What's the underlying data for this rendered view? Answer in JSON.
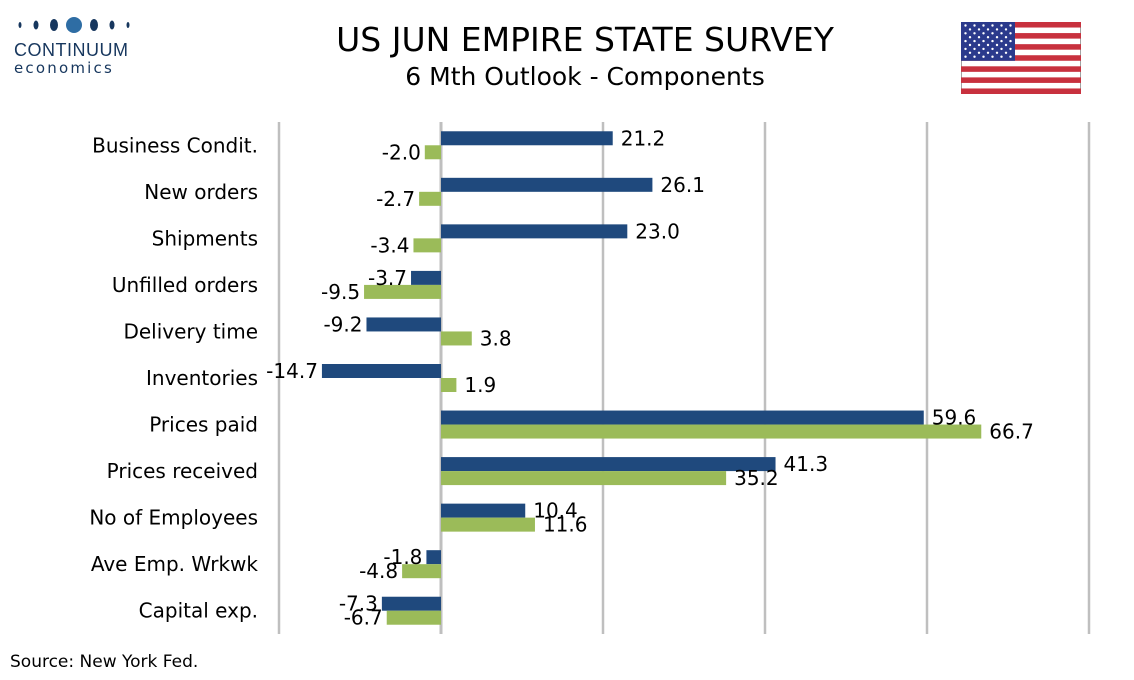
{
  "logo": {
    "name": "CONTINUUM",
    "sub": "economics"
  },
  "title": "US JUN EMPIRE STATE SURVEY",
  "subtitle": "6 Mth Outlook - Components",
  "source": "Source: New York Fed.",
  "colors": {
    "series_dark": "#1f497d",
    "series_light": "#9bbb59",
    "grid": "#bfbfbf",
    "axis": "#bfbfbf"
  },
  "chart_data": {
    "type": "bar",
    "orientation": "horizontal",
    "categories": [
      "Business Condit.",
      "New orders",
      "Shipments",
      "Unfilled orders",
      "Delivery time",
      "Inventories",
      "Prices paid",
      "Prices received",
      "No of Employees",
      "Ave Emp. Wrkwk",
      "Capital exp."
    ],
    "series": [
      {
        "values": [
          21.2,
          26.1,
          23.0,
          -3.7,
          -9.2,
          -14.7,
          59.6,
          41.3,
          10.4,
          -1.8,
          -7.3
        ]
      },
      {
        "values": [
          -2.0,
          -2.7,
          -3.4,
          -9.5,
          3.8,
          1.9,
          66.7,
          35.2,
          11.6,
          -4.8,
          -6.7
        ]
      }
    ],
    "data_labels": [
      [
        "21.2",
        "26.1",
        "23.0",
        "-3.7",
        "-9.2",
        "-14.7",
        "59.6",
        "41.3",
        "10.4",
        "-1.8",
        "-7.3"
      ],
      [
        "-2.0",
        "-2.7",
        "-3.4",
        "-9.5",
        "3.8",
        "1.9",
        "66.7",
        "35.2",
        "11.6",
        "-4.8",
        "-6.7"
      ]
    ],
    "xlim": [
      -20,
      80
    ],
    "grid_step": 20,
    "grid": true,
    "legend": "none"
  }
}
